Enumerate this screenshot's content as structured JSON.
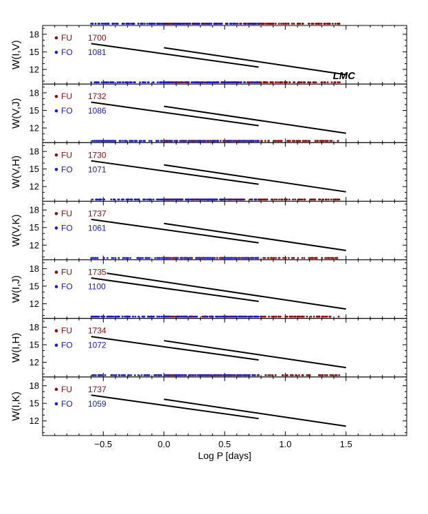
{
  "figure": {
    "xlabel": "Log P [days]",
    "annotation": "LMC",
    "x_ticks": [
      "−0.5",
      "0.0",
      "0.5",
      "1.0",
      "1.5"
    ],
    "y_ticks": [
      "12",
      "15",
      "18"
    ],
    "colors": {
      "FU": "#8b0a0a",
      "FO": "#1a1acc",
      "fit": "#000000"
    }
  },
  "chart_data": [
    {
      "type": "scatter",
      "ylabel": "W(I,V)",
      "xlim": [
        -1.0,
        2.0
      ],
      "ylim": [
        19.5,
        9.5
      ],
      "inverted_y": true,
      "legend": [
        {
          "name": "FU",
          "count": "1700"
        },
        {
          "name": "FO",
          "count": "1081"
        }
      ],
      "fits": {
        "FU": {
          "x": [
            0.0,
            1.5
          ],
          "y": [
            15.7,
            11.1
          ]
        },
        "FO": {
          "x": [
            -0.6,
            0.78
          ],
          "y": [
            16.4,
            12.4
          ]
        }
      }
    },
    {
      "type": "scatter",
      "ylabel": "W(V,J)",
      "xlim": [
        -1.0,
        2.0
      ],
      "ylim": [
        19.5,
        9.5
      ],
      "inverted_y": true,
      "legend": [
        {
          "name": "FU",
          "count": "1732"
        },
        {
          "name": "FO",
          "count": "1086"
        }
      ],
      "fits": {
        "FU": {
          "x": [
            0.0,
            1.5
          ],
          "y": [
            15.7,
            11.1
          ]
        },
        "FO": {
          "x": [
            -0.6,
            0.78
          ],
          "y": [
            16.4,
            12.4
          ]
        }
      }
    },
    {
      "type": "scatter",
      "ylabel": "W(V,H)",
      "xlim": [
        -1.0,
        2.0
      ],
      "ylim": [
        19.5,
        9.5
      ],
      "inverted_y": true,
      "legend": [
        {
          "name": "FU",
          "count": "1730"
        },
        {
          "name": "FO",
          "count": "1071"
        }
      ],
      "fits": {
        "FU": {
          "x": [
            0.0,
            1.5
          ],
          "y": [
            15.7,
            11.1
          ]
        },
        "FO": {
          "x": [
            -0.6,
            0.78
          ],
          "y": [
            16.4,
            12.4
          ]
        }
      }
    },
    {
      "type": "scatter",
      "ylabel": "W(V,K)",
      "xlim": [
        -1.0,
        2.0
      ],
      "ylim": [
        19.5,
        9.5
      ],
      "inverted_y": true,
      "legend": [
        {
          "name": "FU",
          "count": "1737"
        },
        {
          "name": "FO",
          "count": "1061"
        }
      ],
      "fits": {
        "FU": {
          "x": [
            0.0,
            1.5
          ],
          "y": [
            15.7,
            11.1
          ]
        },
        "FO": {
          "x": [
            -0.6,
            0.78
          ],
          "y": [
            16.4,
            12.4
          ]
        }
      }
    },
    {
      "type": "scatter",
      "ylabel": "W(I,J)",
      "xlim": [
        -1.0,
        2.0
      ],
      "ylim": [
        19.5,
        9.5
      ],
      "inverted_y": true,
      "legend": [
        {
          "name": "FU",
          "count": "1735"
        },
        {
          "name": "FO",
          "count": "1100"
        }
      ],
      "fits": {
        "FU": {
          "x": [
            -0.47,
            1.5
          ],
          "y": [
            17.2,
            11.1
          ]
        },
        "FO": {
          "x": [
            -0.6,
            0.78
          ],
          "y": [
            16.4,
            12.4
          ]
        }
      }
    },
    {
      "type": "scatter",
      "ylabel": "W(I,H)",
      "xlim": [
        -1.0,
        2.0
      ],
      "ylim": [
        19.5,
        9.5
      ],
      "inverted_y": true,
      "legend": [
        {
          "name": "FU",
          "count": "1734"
        },
        {
          "name": "FO",
          "count": "1072"
        }
      ],
      "fits": {
        "FU": {
          "x": [
            0.0,
            1.5
          ],
          "y": [
            15.7,
            11.1
          ]
        },
        "FO": {
          "x": [
            -0.6,
            0.78
          ],
          "y": [
            16.4,
            12.4
          ]
        }
      }
    },
    {
      "type": "scatter",
      "ylabel": "W(I,K)",
      "xlim": [
        -1.0,
        2.0
      ],
      "ylim": [
        19.5,
        9.5
      ],
      "inverted_y": true,
      "legend": [
        {
          "name": "FU",
          "count": "1737"
        },
        {
          "name": "FO",
          "count": "1059"
        }
      ],
      "fits": {
        "FU": {
          "x": [
            0.0,
            1.5
          ],
          "y": [
            15.7,
            11.1
          ]
        },
        "FO": {
          "x": [
            -0.6,
            0.78
          ],
          "y": [
            16.4,
            12.4
          ]
        }
      }
    }
  ]
}
